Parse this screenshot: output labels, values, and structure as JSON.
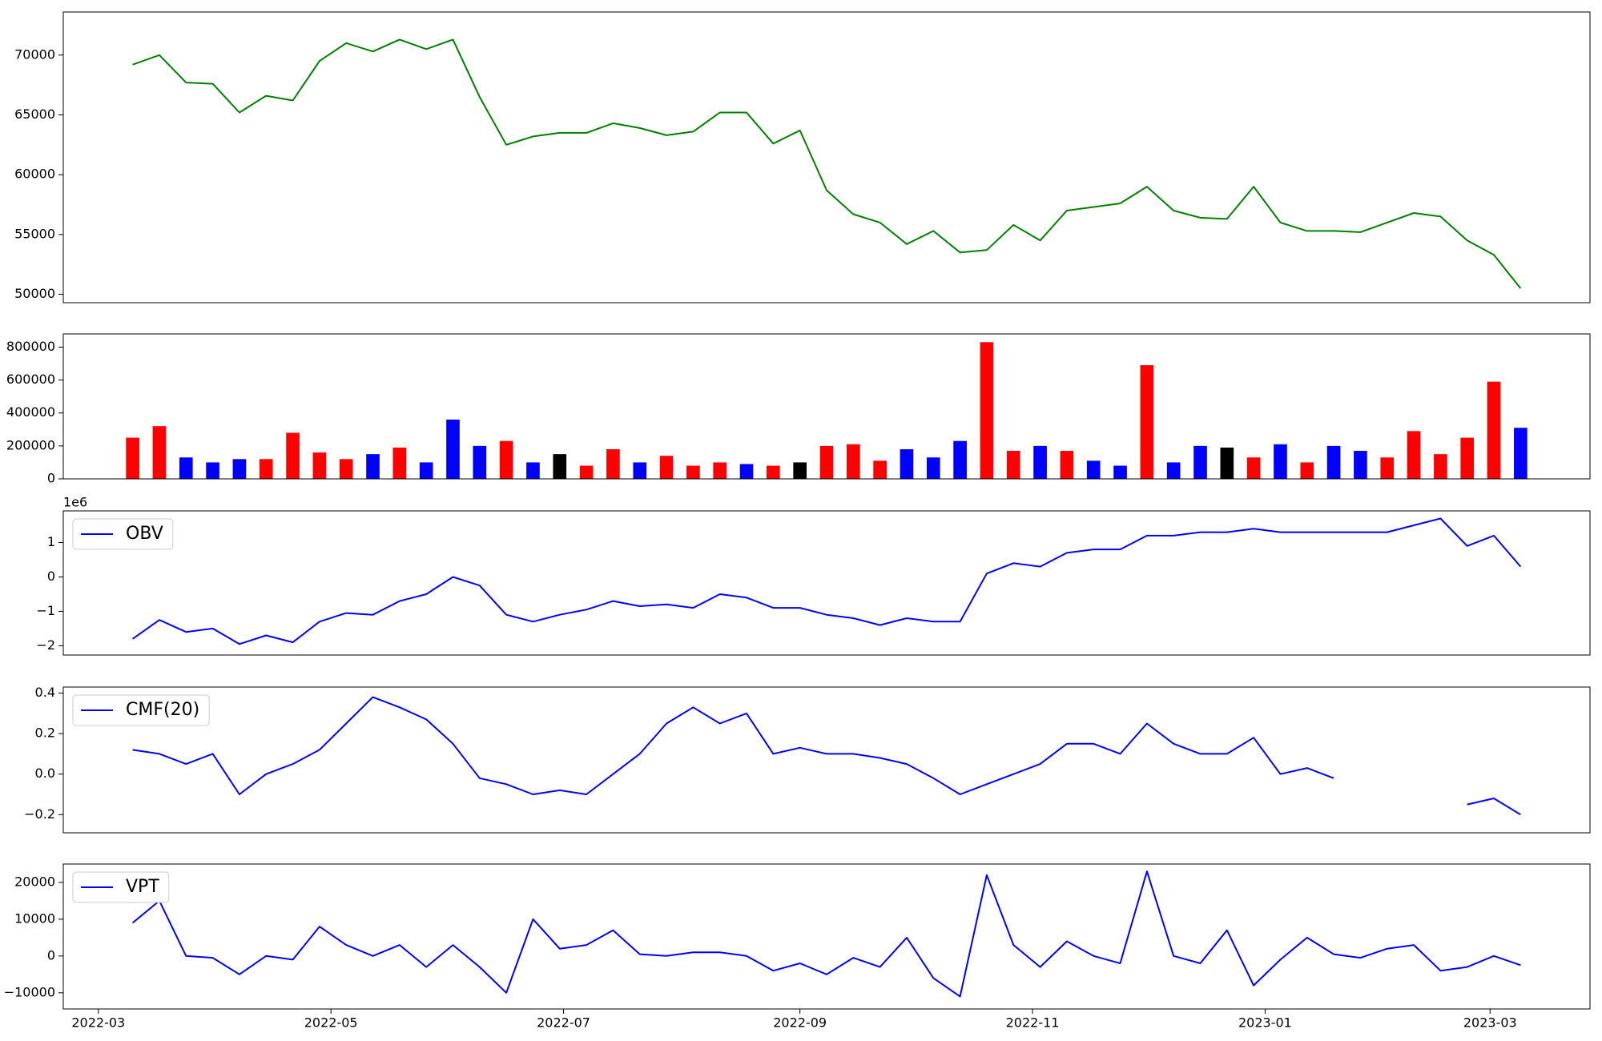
{
  "chart_data": [
    {
      "type": "line",
      "x": [
        "2022-03-10",
        "2022-03-17",
        "2022-03-24",
        "2022-03-31",
        "2022-04-07",
        "2022-04-14",
        "2022-04-21",
        "2022-04-28",
        "2022-05-05",
        "2022-05-12",
        "2022-05-19",
        "2022-05-26",
        "2022-06-02",
        "2022-06-09",
        "2022-06-16",
        "2022-06-23",
        "2022-06-30",
        "2022-07-07",
        "2022-07-14",
        "2022-07-21",
        "2022-07-28",
        "2022-08-04",
        "2022-08-11",
        "2022-08-18",
        "2022-08-25",
        "2022-09-01",
        "2022-09-08",
        "2022-09-15",
        "2022-09-22",
        "2022-09-29",
        "2022-10-06",
        "2022-10-13",
        "2022-10-20",
        "2022-10-27",
        "2022-11-03",
        "2022-11-10",
        "2022-11-17",
        "2022-11-24",
        "2022-12-01",
        "2022-12-08",
        "2022-12-15",
        "2022-12-22",
        "2022-12-29",
        "2023-01-05",
        "2023-01-12",
        "2023-01-19",
        "2023-01-26",
        "2023-02-02",
        "2023-02-09",
        "2023-02-16",
        "2023-02-23",
        "2023-03-02",
        "2023-03-09"
      ],
      "series": [
        {
          "color": "green",
          "values": [
            69200,
            70000,
            67700,
            67600,
            65200,
            66600,
            66200,
            69500,
            71000,
            70300,
            71300,
            70500,
            71300,
            66500,
            62500,
            63200,
            63500,
            63500,
            64300,
            63900,
            63300,
            63600,
            65200,
            65200,
            62600,
            63700,
            58700,
            56700,
            56000,
            54200,
            55300,
            53500,
            53700,
            55800,
            54500,
            57000,
            57300,
            57600,
            59000,
            57000,
            56400,
            56300,
            59000,
            56000,
            55300,
            55300,
            55200,
            56000,
            56800,
            56500,
            54500,
            53300,
            50500
          ]
        }
      ],
      "ylim": [
        49300,
        73600
      ],
      "yticks": [
        50000,
        55000,
        60000,
        65000,
        70000
      ]
    },
    {
      "type": "bar",
      "x": [
        "2022-03-10",
        "2022-03-17",
        "2022-03-24",
        "2022-03-31",
        "2022-04-07",
        "2022-04-14",
        "2022-04-21",
        "2022-04-28",
        "2022-05-05",
        "2022-05-12",
        "2022-05-19",
        "2022-05-26",
        "2022-06-02",
        "2022-06-09",
        "2022-06-16",
        "2022-06-23",
        "2022-06-30",
        "2022-07-07",
        "2022-07-14",
        "2022-07-21",
        "2022-07-28",
        "2022-08-04",
        "2022-08-11",
        "2022-08-18",
        "2022-08-25",
        "2022-09-01",
        "2022-09-08",
        "2022-09-15",
        "2022-09-22",
        "2022-09-29",
        "2022-10-06",
        "2022-10-13",
        "2022-10-20",
        "2022-10-27",
        "2022-11-03",
        "2022-11-10",
        "2022-11-17",
        "2022-11-24",
        "2022-12-01",
        "2022-12-08",
        "2022-12-15",
        "2022-12-22",
        "2022-12-29",
        "2023-01-05",
        "2023-01-12",
        "2023-01-19",
        "2023-01-26",
        "2023-02-02",
        "2023-02-09",
        "2023-02-16",
        "2023-02-23",
        "2023-03-02",
        "2023-03-09"
      ],
      "values": [
        250000,
        320000,
        130000,
        100000,
        120000,
        120000,
        280000,
        160000,
        120000,
        150000,
        190000,
        100000,
        360000,
        200000,
        230000,
        100000,
        150000,
        80000,
        180000,
        100000,
        140000,
        80000,
        100000,
        90000,
        80000,
        100000,
        200000,
        210000,
        110000,
        180000,
        130000,
        230000,
        830000,
        170000,
        200000,
        170000,
        110000,
        80000,
        690000,
        100000,
        200000,
        190000,
        130000,
        210000,
        100000,
        200000,
        170000,
        130000,
        290000,
        150000,
        250000,
        590000,
        310000
      ],
      "colors": [
        "red",
        "red",
        "blue",
        "blue",
        "blue",
        "red",
        "red",
        "red",
        "red",
        "blue",
        "red",
        "blue",
        "blue",
        "blue",
        "red",
        "blue",
        "black",
        "red",
        "red",
        "blue",
        "red",
        "red",
        "red",
        "blue",
        "red",
        "black",
        "red",
        "red",
        "red",
        "blue",
        "blue",
        "blue",
        "red",
        "red",
        "blue",
        "red",
        "blue",
        "blue",
        "red",
        "blue",
        "blue",
        "black",
        "red",
        "blue",
        "red",
        "blue",
        "blue",
        "red",
        "red",
        "red",
        "red",
        "red",
        "blue"
      ],
      "ylim": [
        0,
        880000
      ],
      "yticks": [
        0,
        200000,
        400000,
        600000,
        800000
      ]
    },
    {
      "type": "line",
      "y_offset_label": "1e6",
      "legend": "upper left",
      "x": [
        "2022-03-10",
        "2022-03-17",
        "2022-03-24",
        "2022-03-31",
        "2022-04-07",
        "2022-04-14",
        "2022-04-21",
        "2022-04-28",
        "2022-05-05",
        "2022-05-12",
        "2022-05-19",
        "2022-05-26",
        "2022-06-02",
        "2022-06-09",
        "2022-06-16",
        "2022-06-23",
        "2022-06-30",
        "2022-07-07",
        "2022-07-14",
        "2022-07-21",
        "2022-07-28",
        "2022-08-04",
        "2022-08-11",
        "2022-08-18",
        "2022-08-25",
        "2022-09-01",
        "2022-09-08",
        "2022-09-15",
        "2022-09-22",
        "2022-09-29",
        "2022-10-06",
        "2022-10-13",
        "2022-10-20",
        "2022-10-27",
        "2022-11-03",
        "2022-11-10",
        "2022-11-17",
        "2022-11-24",
        "2022-12-01",
        "2022-12-08",
        "2022-12-15",
        "2022-12-22",
        "2022-12-29",
        "2023-01-05",
        "2023-01-12",
        "2023-01-19",
        "2023-01-26",
        "2023-02-02",
        "2023-02-09",
        "2023-02-16",
        "2023-02-23",
        "2023-03-02",
        "2023-03-09"
      ],
      "series": [
        {
          "name": "OBV",
          "color": "blue",
          "values": [
            -1.8,
            -1.25,
            -1.6,
            -1.5,
            -1.95,
            -1.7,
            -1.9,
            -1.3,
            -1.05,
            -1.1,
            -0.7,
            -0.5,
            0.0,
            -0.25,
            -1.1,
            -1.3,
            -1.1,
            -0.95,
            -0.7,
            -0.85,
            -0.8,
            -0.9,
            -0.5,
            -0.6,
            -0.9,
            -0.9,
            -1.1,
            -1.2,
            -1.4,
            -1.2,
            -1.3,
            -1.3,
            0.1,
            0.4,
            0.3,
            0.7,
            0.8,
            0.8,
            1.2,
            1.2,
            1.3,
            1.3,
            1.4,
            1.3,
            1.3,
            1.3,
            1.3,
            1.3,
            1.5,
            1.7,
            0.9,
            1.2,
            0.3
          ]
        }
      ],
      "ylim": [
        -2.27,
        1.92
      ],
      "yticks": [
        {
          "value": -2,
          "label": "−2"
        },
        {
          "value": -1,
          "label": "−1"
        },
        0,
        1
      ]
    },
    {
      "type": "line",
      "legend": "upper left",
      "x": [
        "2022-03-10",
        "2022-03-17",
        "2022-03-24",
        "2022-03-31",
        "2022-04-07",
        "2022-04-14",
        "2022-04-21",
        "2022-04-28",
        "2022-05-05",
        "2022-05-12",
        "2022-05-19",
        "2022-05-26",
        "2022-06-02",
        "2022-06-09",
        "2022-06-16",
        "2022-06-23",
        "2022-06-30",
        "2022-07-07",
        "2022-07-14",
        "2022-07-21",
        "2022-07-28",
        "2022-08-04",
        "2022-08-11",
        "2022-08-18",
        "2022-08-25",
        "2022-09-01",
        "2022-09-08",
        "2022-09-15",
        "2022-09-22",
        "2022-09-29",
        "2022-10-06",
        "2022-10-13",
        "2022-10-20",
        "2022-10-27",
        "2022-11-03",
        "2022-11-10",
        "2022-11-17",
        "2022-11-24",
        "2022-12-01",
        "2022-12-08",
        "2022-12-15",
        "2022-12-22",
        "2022-12-29",
        "2023-01-05",
        "2023-01-12",
        "2023-01-19",
        "2023-01-26",
        "2023-02-02",
        "2023-02-09",
        "2023-02-16",
        "2023-02-23",
        "2023-03-02",
        "2023-03-09"
      ],
      "series": [
        {
          "name": "CMF(20)",
          "color": "blue",
          "values": [
            0.12,
            0.1,
            0.05,
            0.1,
            -0.1,
            0.0,
            0.05,
            0.12,
            0.25,
            0.38,
            0.33,
            0.27,
            0.15,
            -0.02,
            -0.05,
            -0.1,
            -0.08,
            -0.1,
            0.0,
            0.1,
            0.25,
            0.33,
            0.25,
            0.3,
            0.1,
            0.13,
            0.1,
            0.1,
            0.08,
            0.05,
            -0.02,
            -0.1,
            -0.05,
            0.0,
            0.05,
            0.15,
            0.15,
            0.1,
            0.25,
            0.15,
            0.1,
            0.1,
            0.18,
            0.0,
            0.03,
            -0.02,
            null,
            null,
            null,
            null,
            -0.15,
            -0.12,
            -0.2
          ]
        }
      ],
      "ylim": [
        -0.29,
        0.43
      ],
      "yticks": [
        {
          "value": -0.2,
          "label": "−0.2"
        },
        {
          "value": 0,
          "label": "0.0"
        },
        0.2,
        0.4
      ]
    },
    {
      "type": "line",
      "legend": "upper left",
      "x": [
        "2022-03-10",
        "2022-03-17",
        "2022-03-24",
        "2022-03-31",
        "2022-04-07",
        "2022-04-14",
        "2022-04-21",
        "2022-04-28",
        "2022-05-05",
        "2022-05-12",
        "2022-05-19",
        "2022-05-26",
        "2022-06-02",
        "2022-06-09",
        "2022-06-16",
        "2022-06-23",
        "2022-06-30",
        "2022-07-07",
        "2022-07-14",
        "2022-07-21",
        "2022-07-28",
        "2022-08-04",
        "2022-08-11",
        "2022-08-18",
        "2022-08-25",
        "2022-09-01",
        "2022-09-08",
        "2022-09-15",
        "2022-09-22",
        "2022-09-29",
        "2022-10-06",
        "2022-10-13",
        "2022-10-20",
        "2022-10-27",
        "2022-11-03",
        "2022-11-10",
        "2022-11-17",
        "2022-11-24",
        "2022-12-01",
        "2022-12-08",
        "2022-12-15",
        "2022-12-22",
        "2022-12-29",
        "2023-01-05",
        "2023-01-12",
        "2023-01-19",
        "2023-01-26",
        "2023-02-02",
        "2023-02-09",
        "2023-02-16",
        "2023-02-23",
        "2023-03-02",
        "2023-03-09"
      ],
      "series": [
        {
          "name": "VPT",
          "color": "blue",
          "values": [
            9000,
            15000,
            0,
            -500,
            -5000,
            0,
            -1000,
            8000,
            3000,
            0,
            3000,
            -3000,
            3000,
            -3000,
            -10000,
            10000,
            2000,
            3000,
            7000,
            500,
            0,
            1000,
            1000,
            0,
            -4000,
            -2000,
            -5000,
            -500,
            -3000,
            5000,
            -6000,
            -11000,
            22000,
            3000,
            -3000,
            4000,
            0,
            -2000,
            23000,
            0,
            -2000,
            7000,
            -8000,
            -1000,
            5000,
            500,
            -500,
            2000,
            3000,
            -4000,
            -3000,
            0,
            -2500
          ]
        }
      ],
      "ylim": [
        -14400,
        25000
      ],
      "yticks": [
        {
          "value": -10000,
          "label": "−10000"
        },
        0,
        10000,
        20000
      ],
      "xticks": [
        "2022-03",
        "2022-05",
        "2022-07",
        "2022-09",
        "2022-11",
        "2023-01",
        "2023-03"
      ]
    }
  ]
}
